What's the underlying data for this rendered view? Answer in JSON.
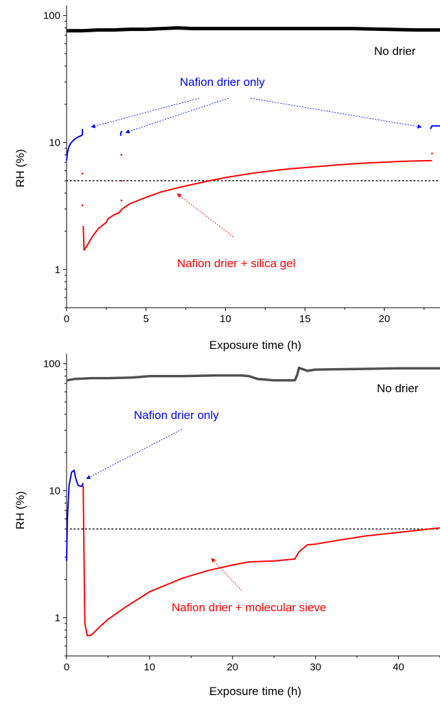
{
  "chart_data": [
    {
      "type": "line",
      "title": "",
      "xlabel": "Exposure time (h)",
      "ylabel": "RH (%)",
      "xlim": [
        0,
        23.5
      ],
      "ylim": [
        0.5,
        120
      ],
      "yscale": "log",
      "xticks": [
        0,
        5,
        10,
        15,
        20
      ],
      "yticks": [
        1,
        10,
        100
      ],
      "threshold": 5,
      "series": [
        {
          "name": "No drier",
          "color": "#000000",
          "points": [
            [
              0,
              76
            ],
            [
              1,
              76
            ],
            [
              2,
              77
            ],
            [
              3,
              77
            ],
            [
              4,
              78
            ],
            [
              5,
              78
            ],
            [
              6,
              79
            ],
            [
              7,
              80
            ],
            [
              8,
              79
            ],
            [
              9,
              79
            ],
            [
              10,
              79
            ],
            [
              12,
              79
            ],
            [
              14,
              79
            ],
            [
              16,
              79
            ],
            [
              18,
              79
            ],
            [
              20,
              78
            ],
            [
              22,
              77
            ],
            [
              23.5,
              77
            ]
          ]
        },
        {
          "name": "Nafion drier only",
          "color": "#0000ff",
          "segments": [
            [
              [
                0,
                7.2
              ],
              [
                0.05,
                8.3
              ],
              [
                0.15,
                9.3
              ],
              [
                0.3,
                10.0
              ],
              [
                0.5,
                10.6
              ],
              [
                0.7,
                11.0
              ],
              [
                0.9,
                11.3
              ],
              [
                1.0,
                11.5
              ],
              [
                1.0,
                12.8
              ]
            ],
            [
              [
                3.4,
                11.3
              ],
              [
                3.42,
                12.0
              ],
              [
                3.5,
                12.3
              ]
            ],
            [
              [
                22.9,
                12.8
              ],
              [
                23.0,
                13.5
              ],
              [
                23.5,
                13.5
              ]
            ]
          ]
        },
        {
          "name": "Nafion drier + silica gel",
          "color": "#ff0000",
          "segments": [
            [
              [
                1.05,
                2.2
              ],
              [
                1.1,
                1.42
              ],
              [
                1.3,
                1.55
              ],
              [
                1.6,
                1.8
              ],
              [
                2.0,
                2.1
              ],
              [
                2.4,
                2.3
              ],
              [
                2.5,
                2.35
              ],
              [
                2.6,
                2.5
              ],
              [
                2.8,
                2.6
              ],
              [
                3.0,
                2.7
              ],
              [
                3.3,
                2.8
              ],
              [
                3.5,
                3.0
              ],
              [
                4.0,
                3.3
              ],
              [
                5.0,
                3.7
              ],
              [
                6.0,
                4.1
              ],
              [
                7.0,
                4.4
              ],
              [
                8.0,
                4.7
              ],
              [
                9.0,
                5.0
              ],
              [
                10.0,
                5.3
              ],
              [
                11.0,
                5.55
              ],
              [
                12.0,
                5.8
              ],
              [
                13.0,
                6.0
              ],
              [
                14.0,
                6.2
              ],
              [
                15.0,
                6.35
              ],
              [
                16.0,
                6.5
              ],
              [
                17.0,
                6.65
              ],
              [
                18.0,
                6.8
              ],
              [
                19.0,
                6.9
              ],
              [
                20.0,
                7.0
              ],
              [
                21.0,
                7.1
              ],
              [
                22.0,
                7.15
              ],
              [
                23.0,
                7.2
              ]
            ]
          ],
          "spikes": [
            [
              1.0,
              5.7
            ],
            [
              1.0,
              3.2
            ],
            [
              3.45,
              8.0
            ],
            [
              3.45,
              5.0
            ],
            [
              3.45,
              3.5
            ],
            [
              23.0,
              8.2
            ]
          ]
        }
      ],
      "annotations": [
        {
          "text": "No drier",
          "color": "#000000"
        },
        {
          "text": "Nafion drier only",
          "color": "#0000ff"
        },
        {
          "text": "Nafion drier + silica gel",
          "color": "#ff0000"
        }
      ]
    },
    {
      "type": "line",
      "title": "",
      "xlabel": "Exposure time (h)",
      "ylabel": "RH (%)",
      "xlim": [
        0,
        45
      ],
      "ylim": [
        0.5,
        120
      ],
      "yscale": "log",
      "xticks": [
        0,
        10,
        20,
        30,
        40
      ],
      "yticks": [
        1,
        10,
        100
      ],
      "threshold": 5,
      "series": [
        {
          "name": "No drier",
          "color": "#505050",
          "points": [
            [
              0,
              74
            ],
            [
              1,
              76
            ],
            [
              3,
              77
            ],
            [
              5,
              77
            ],
            [
              8,
              78
            ],
            [
              10,
              80
            ],
            [
              14,
              80
            ],
            [
              18,
              81
            ],
            [
              21,
              81
            ],
            [
              22,
              80
            ],
            [
              23,
              76
            ],
            [
              25,
              74
            ],
            [
              27.5,
              74
            ],
            [
              27.8,
              82
            ],
            [
              28,
              93
            ],
            [
              29,
              88
            ],
            [
              30,
              90
            ],
            [
              35,
              91
            ],
            [
              40,
              92
            ],
            [
              45,
              92
            ]
          ]
        },
        {
          "name": "Nafion drier only",
          "color": "#0000ff",
          "segments": [
            [
              [
                0,
                2.8
              ],
              [
                0.1,
                6.0
              ],
              [
                0.3,
                11.0
              ],
              [
                0.6,
                14.0
              ],
              [
                0.9,
                14.5
              ],
              [
                1.1,
                12.5
              ],
              [
                1.4,
                11.0
              ],
              [
                1.8,
                10.8
              ],
              [
                2.0,
                11.5
              ]
            ]
          ]
        },
        {
          "name": "Nafion drier  + molecular sieve",
          "color": "#ff0000",
          "segments": [
            [
              [
                2.0,
                11.0
              ],
              [
                2.1,
                3.0
              ],
              [
                2.2,
                0.9
              ],
              [
                2.5,
                0.72
              ],
              [
                3.0,
                0.73
              ],
              [
                4.0,
                0.85
              ],
              [
                5.0,
                0.97
              ],
              [
                7.0,
                1.2
              ],
              [
                10.0,
                1.6
              ],
              [
                14.0,
                2.05
              ],
              [
                17.0,
                2.35
              ],
              [
                20.0,
                2.6
              ],
              [
                22.0,
                2.75
              ],
              [
                25.0,
                2.8
              ],
              [
                27.5,
                2.9
              ],
              [
                28.0,
                3.3
              ],
              [
                29.0,
                3.75
              ],
              [
                30.0,
                3.8
              ],
              [
                33.0,
                4.1
              ],
              [
                36.0,
                4.4
              ],
              [
                40.0,
                4.7
              ],
              [
                45.0,
                5.1
              ]
            ]
          ]
        }
      ],
      "annotations": [
        {
          "text": "No drier",
          "color": "#000000"
        },
        {
          "text": "Nafion drier only",
          "color": "#0000ff"
        },
        {
          "text": "Nafion drier  + molecular sieve",
          "color": "#ff0000"
        }
      ]
    }
  ]
}
